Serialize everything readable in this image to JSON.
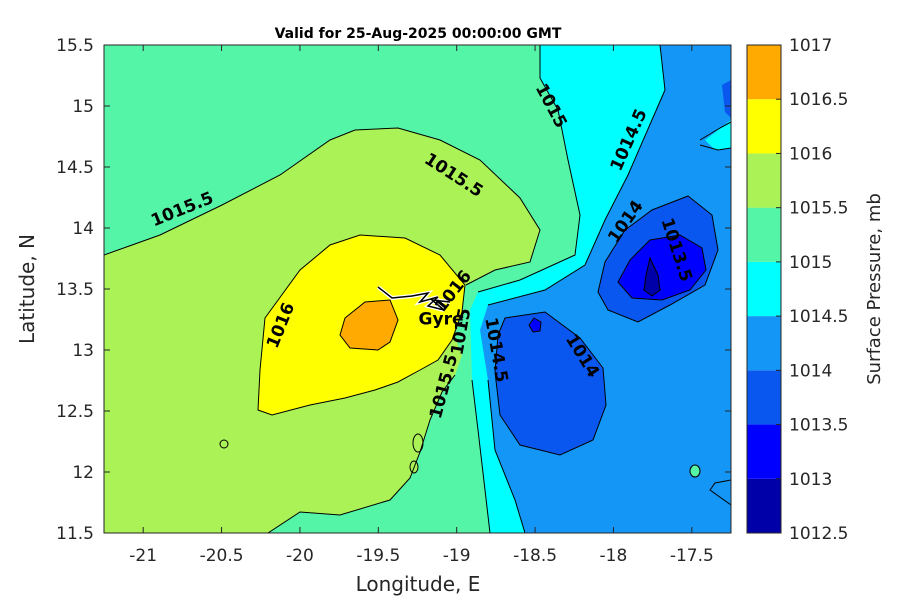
{
  "chart_data": {
    "type": "contour",
    "title": "Valid for 25-Aug-2025 00:00:00 GMT",
    "xlabel": "Longitude, E",
    "ylabel": "Latitude, N",
    "xlim": [
      -21.25,
      -17.25
    ],
    "ylim": [
      11.5,
      15.5
    ],
    "xticks": [
      -21,
      -20.5,
      -20,
      -19.5,
      -19,
      -18.5,
      -18,
      -17.5
    ],
    "xtick_labels": [
      "-21",
      "-20.5",
      "-20",
      "-19.5",
      "-19",
      "-18.5",
      "-18",
      "-17.5"
    ],
    "yticks": [
      11.5,
      12,
      12.5,
      13,
      13.5,
      14,
      14.5,
      15,
      15.5
    ],
    "ytick_labels": [
      "11.5",
      "12",
      "12.5",
      "13",
      "13.5",
      "14",
      "14.5",
      "15",
      "15.5"
    ],
    "colorbar": {
      "label": "Surface Pressure, mb",
      "levels": [
        1012.5,
        1013,
        1013.5,
        1014,
        1014.5,
        1015,
        1015.5,
        1016,
        1016.5,
        1017
      ],
      "tick_labels": [
        "1012.5",
        "1013",
        "1013.5",
        "1014",
        "1014.5",
        "1015",
        "1015.5",
        "1016",
        "1016.5",
        "1017"
      ],
      "colors": [
        "#0000a8",
        "#0000ff",
        "#0a57f0",
        "#1496f7",
        "#00ffff",
        "#55f5a8",
        "#aaf255",
        "#ffff00",
        "#ffaa00",
        "#ff5500"
      ]
    },
    "contour_labels": [
      {
        "text": "1015.5",
        "lon": -20.75,
        "lat": 14.15,
        "angle": -22
      },
      {
        "text": "1015.5",
        "lon": -19.02,
        "lat": 14.43,
        "angle": 33
      },
      {
        "text": "1015",
        "lon": -18.4,
        "lat": 15.0,
        "angle": 62
      },
      {
        "text": "1014.5",
        "lon": -17.9,
        "lat": 14.72,
        "angle": -66
      },
      {
        "text": "1014",
        "lon": -17.92,
        "lat": 14.05,
        "angle": -55
      },
      {
        "text": "1013.5",
        "lon": -17.6,
        "lat": 13.82,
        "angle": 72
      },
      {
        "text": "1016",
        "lon": -20.12,
        "lat": 13.2,
        "angle": -68
      },
      {
        "text": "1016",
        "lon": -19.02,
        "lat": 13.48,
        "angle": -52
      },
      {
        "text": "1015",
        "lon": -18.97,
        "lat": 13.15,
        "angle": -80
      },
      {
        "text": "1014.5",
        "lon": -18.75,
        "lat": 13.0,
        "angle": 80
      },
      {
        "text": "1015.5",
        "lon": -19.08,
        "lat": 12.7,
        "angle": -75
      },
      {
        "text": "1014",
        "lon": -18.2,
        "lat": 12.95,
        "angle": 58
      }
    ],
    "annotations": [
      {
        "text": "Gyre",
        "lon": -19.1,
        "lat": 13.25
      }
    ]
  }
}
